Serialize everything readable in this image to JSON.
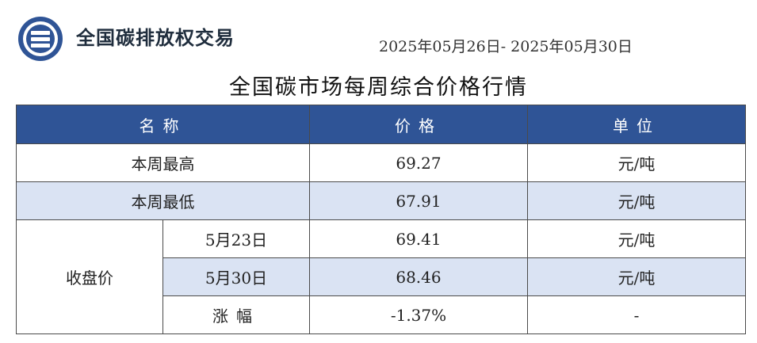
{
  "header": {
    "org_name": "全国碳排放权交易",
    "date_range": "2025年05月26日- 2025年05月30日",
    "title": "全国碳市场每周综合价格行情",
    "logo_icon": "exchange-logo-icon",
    "brand_color": "#2f5496"
  },
  "table": {
    "columns": [
      "名称",
      "价格",
      "单位"
    ],
    "rows": [
      {
        "name": "本周最高",
        "price": "69.27",
        "unit": "元/吨"
      },
      {
        "name": "本周最低",
        "price": "67.91",
        "unit": "元/吨"
      }
    ],
    "closing": {
      "label": "收盘价",
      "rows": [
        {
          "date": "5月23日",
          "price": "69.41",
          "unit": "元/吨"
        },
        {
          "date": "5月30日",
          "price": "68.46",
          "unit": "元/吨"
        },
        {
          "date": "涨幅",
          "price": "-1.37%",
          "unit": "-"
        }
      ]
    }
  }
}
